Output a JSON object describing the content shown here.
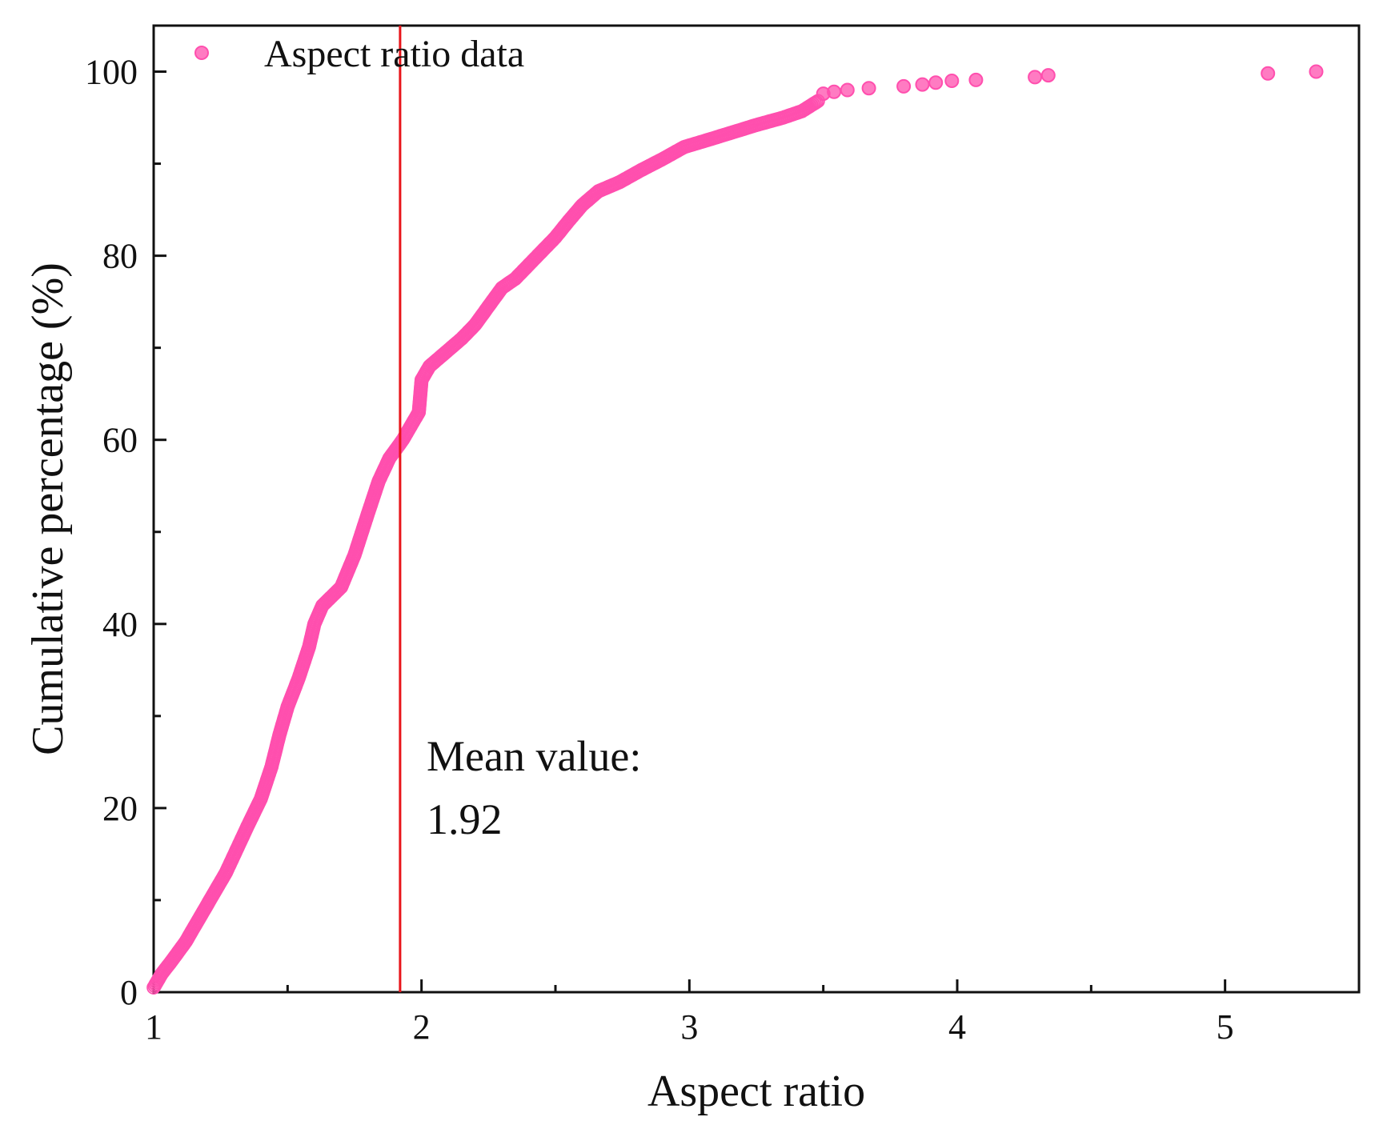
{
  "chart_data": {
    "type": "scatter",
    "title": "",
    "xlabel": "Aspect ratio",
    "ylabel": "Cumulative percentage (%)",
    "xlim": [
      1,
      5.5
    ],
    "ylim": [
      0,
      105
    ],
    "x_ticks": [
      1,
      2,
      3,
      4,
      5
    ],
    "y_ticks": [
      0,
      20,
      40,
      60,
      80,
      100
    ],
    "x_minor_ticks": [
      1.5,
      2.5,
      3.5,
      4.5
    ],
    "y_minor_ticks": [
      10,
      30,
      50,
      70,
      90
    ],
    "grid": false,
    "legend_position": "top-left",
    "series": [
      {
        "name": "Aspect ratio data",
        "color": "#ff4fae",
        "curve_points": [
          [
            1.0,
            0.5
          ],
          [
            1.03,
            2
          ],
          [
            1.07,
            3.5
          ],
          [
            1.12,
            5.5
          ],
          [
            1.17,
            8
          ],
          [
            1.22,
            10.5
          ],
          [
            1.27,
            13
          ],
          [
            1.31,
            15.5
          ],
          [
            1.35,
            18
          ],
          [
            1.4,
            21
          ],
          [
            1.44,
            24.5
          ],
          [
            1.47,
            28
          ],
          [
            1.5,
            31
          ],
          [
            1.54,
            34
          ],
          [
            1.58,
            37.5
          ],
          [
            1.6,
            40
          ],
          [
            1.63,
            42
          ],
          [
            1.7,
            44
          ],
          [
            1.75,
            47.5
          ],
          [
            1.8,
            52
          ],
          [
            1.84,
            55.5
          ],
          [
            1.88,
            58
          ],
          [
            1.93,
            60
          ],
          [
            1.96,
            61.5
          ],
          [
            1.99,
            63
          ],
          [
            2.0,
            66.5
          ],
          [
            2.03,
            68
          ],
          [
            2.09,
            69.5
          ],
          [
            2.15,
            71
          ],
          [
            2.2,
            72.5
          ],
          [
            2.25,
            74.5
          ],
          [
            2.3,
            76.5
          ],
          [
            2.35,
            77.5
          ],
          [
            2.4,
            79
          ],
          [
            2.45,
            80.5
          ],
          [
            2.5,
            82
          ],
          [
            2.55,
            83.8
          ],
          [
            2.6,
            85.5
          ],
          [
            2.66,
            87
          ],
          [
            2.74,
            88
          ],
          [
            2.82,
            89.3
          ],
          [
            2.9,
            90.5
          ],
          [
            2.98,
            91.8
          ],
          [
            3.06,
            92.5
          ],
          [
            3.15,
            93.3
          ],
          [
            3.25,
            94.2
          ],
          [
            3.35,
            95
          ],
          [
            3.42,
            95.7
          ],
          [
            3.48,
            96.8
          ]
        ],
        "isolated_points": [
          [
            3.5,
            97.6
          ],
          [
            3.54,
            97.8
          ],
          [
            3.59,
            98.0
          ],
          [
            3.67,
            98.2
          ],
          [
            3.8,
            98.4
          ],
          [
            3.87,
            98.6
          ],
          [
            3.92,
            98.8
          ],
          [
            3.98,
            99.0
          ],
          [
            4.07,
            99.1
          ],
          [
            4.29,
            99.4
          ],
          [
            4.34,
            99.6
          ],
          [
            5.16,
            99.8
          ],
          [
            5.34,
            100.0
          ]
        ]
      }
    ],
    "mean_line": {
      "x": 1.92,
      "color": "#e8151b"
    },
    "annotation": {
      "line1": "Mean value:",
      "line2": "1.92"
    }
  }
}
